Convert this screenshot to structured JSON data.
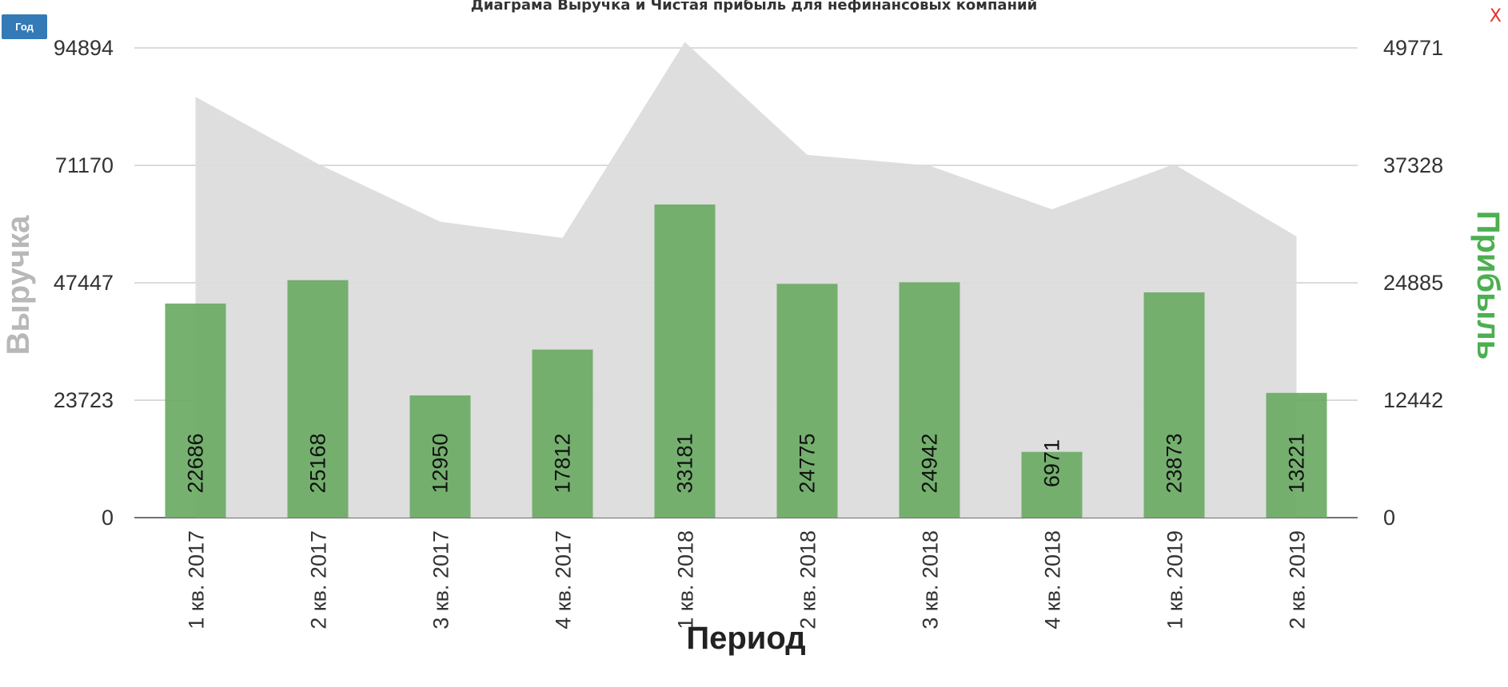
{
  "controls": {
    "period_button": "Год",
    "close_label": "X"
  },
  "colors": {
    "area": "#dcdcdc",
    "bars": "#6aaa64",
    "grid": "#cfcfcf",
    "left_axis_title": "#b8b8b8",
    "right_axis_title": "#4caf50"
  },
  "chart_data": {
    "type": "bar",
    "title": "Диаграма Выручка и Чистая прибыль для нефинансовых компаний",
    "xlabel": "Период",
    "ylabel_left": "Выручка",
    "ylabel_right": "Прибыль",
    "categories": [
      "1 кв. 2017",
      "2 кв. 2017",
      "3 кв. 2017",
      "4 кв. 2017",
      "1 кв. 2018",
      "2 кв. 2018",
      "3 кв. 2018",
      "4 кв. 2018",
      "1 кв. 2019",
      "2 кв. 2019"
    ],
    "y_left_ticks": [
      "0",
      "23723",
      "47447",
      "71170",
      "94894"
    ],
    "y_right_ticks": [
      "0",
      "12442",
      "24885",
      "37328",
      "49771"
    ],
    "y_left_range": [
      0,
      94894
    ],
    "y_right_range": [
      0,
      49771
    ],
    "grid": true,
    "series": [
      {
        "name": "Выручка",
        "type": "area",
        "axis": "left",
        "values": [
          85000,
          71500,
          59800,
          56500,
          96100,
          73300,
          71100,
          62300,
          71400,
          56800
        ]
      },
      {
        "name": "Прибыль",
        "type": "bar",
        "axis": "right",
        "values": [
          22686,
          25168,
          12950,
          17812,
          33181,
          24775,
          24942,
          6971,
          23873,
          13221
        ],
        "labels": [
          "22686",
          "25168",
          "12950",
          "17812",
          "33181",
          "24775",
          "24942",
          "6971",
          "23873",
          "13221"
        ]
      }
    ]
  }
}
